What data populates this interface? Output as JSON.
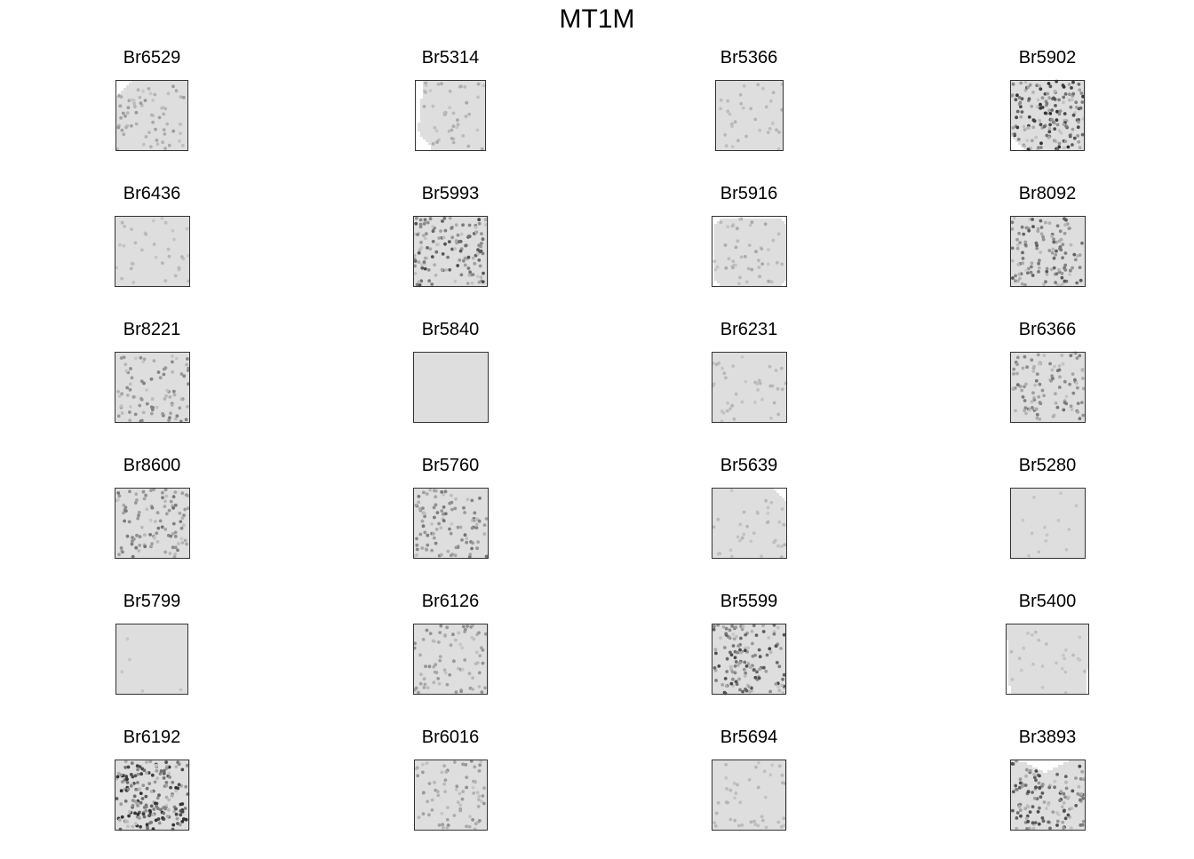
{
  "title": "MT1M",
  "chart_data": [
    {
      "type": "scatter",
      "title": "Br6529",
      "seed": 11,
      "shape": "tl-corner",
      "intensity": 0.25
    },
    {
      "type": "scatter",
      "title": "Br5314",
      "seed": 23,
      "shape": "left-wedge",
      "intensity": 0.2
    },
    {
      "type": "scatter",
      "title": "Br5366",
      "seed": 37,
      "shape": "full",
      "intensity": 0.15
    },
    {
      "type": "scatter",
      "title": "Br5902",
      "seed": 41,
      "shape": "bl-corner",
      "intensity": 0.65
    },
    {
      "type": "scatter",
      "title": "Br6436",
      "seed": 53,
      "shape": "full",
      "intensity": 0.15
    },
    {
      "type": "scatter",
      "title": "Br5993",
      "seed": 67,
      "shape": "full",
      "intensity": 0.55
    },
    {
      "type": "scatter",
      "title": "Br5916",
      "seed": 71,
      "shape": "rounded",
      "intensity": 0.2
    },
    {
      "type": "scatter",
      "title": "Br8092",
      "seed": 83,
      "shape": "br-wedge",
      "intensity": 0.5
    },
    {
      "type": "scatter",
      "title": "Br8221",
      "seed": 97,
      "shape": "full",
      "intensity": 0.35
    },
    {
      "type": "scatter",
      "title": "Br5840",
      "seed": 101,
      "shape": "full",
      "intensity": 0.06
    },
    {
      "type": "scatter",
      "title": "Br6231",
      "seed": 113,
      "shape": "full",
      "intensity": 0.15
    },
    {
      "type": "scatter",
      "title": "Br6366",
      "seed": 127,
      "shape": "full",
      "intensity": 0.4
    },
    {
      "type": "scatter",
      "title": "Br8600",
      "seed": 131,
      "shape": "full",
      "intensity": 0.4
    },
    {
      "type": "scatter",
      "title": "Br5760",
      "seed": 149,
      "shape": "full",
      "intensity": 0.4
    },
    {
      "type": "scatter",
      "title": "Br5639",
      "seed": 151,
      "shape": "tr-corner",
      "intensity": 0.15
    },
    {
      "type": "scatter",
      "title": "Br5280",
      "seed": 163,
      "shape": "full",
      "intensity": 0.1
    },
    {
      "type": "scatter",
      "title": "Br5799",
      "seed": 173,
      "shape": "full",
      "intensity": 0.08
    },
    {
      "type": "scatter",
      "title": "Br6126",
      "seed": 181,
      "shape": "full",
      "intensity": 0.3
    },
    {
      "type": "scatter",
      "title": "Br5599",
      "seed": 191,
      "shape": "full",
      "intensity": 0.55
    },
    {
      "type": "scatter",
      "title": "Br5400",
      "seed": 197,
      "shape": "skewed",
      "intensity": 0.12
    },
    {
      "type": "scatter",
      "title": "Br6192",
      "seed": 211,
      "shape": "full",
      "intensity": 0.75
    },
    {
      "type": "scatter",
      "title": "Br6016",
      "seed": 223,
      "shape": "full",
      "intensity": 0.3
    },
    {
      "type": "scatter",
      "title": "Br5694",
      "seed": 227,
      "shape": "full",
      "intensity": 0.15
    },
    {
      "type": "scatter",
      "title": "Br3893",
      "seed": 233,
      "shape": "top-v",
      "intensity": 0.55
    }
  ]
}
